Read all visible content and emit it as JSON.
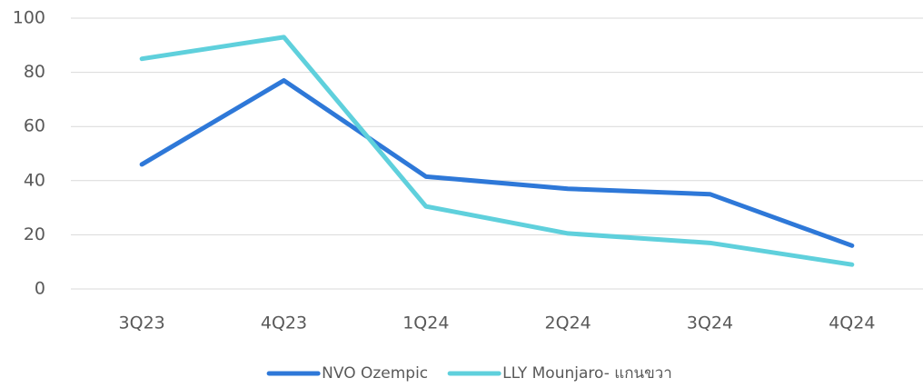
{
  "chart_data": {
    "type": "line",
    "categories": [
      "3Q23",
      "4Q23",
      "1Q24",
      "2Q24",
      "3Q24",
      "4Q24"
    ],
    "series": [
      {
        "name": "NVO Ozempic",
        "color": "#2e78d8",
        "values": [
          46,
          77,
          41.5,
          37,
          35,
          16
        ]
      },
      {
        "name": "LLY Mounjaro- แกนขวา",
        "color": "#5fd0dc",
        "values": [
          85,
          93,
          30.5,
          20.5,
          17,
          9
        ]
      }
    ],
    "ylim": [
      0,
      100
    ],
    "yticks": [
      0,
      20,
      40,
      60,
      80,
      100
    ],
    "grid": true,
    "legend": "bottom"
  }
}
